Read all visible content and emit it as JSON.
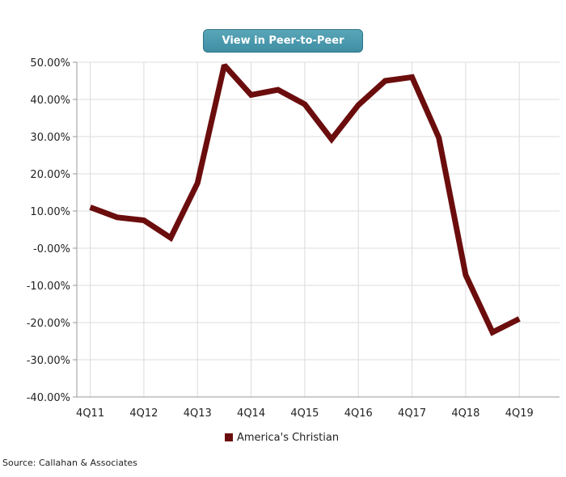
{
  "button": {
    "label": "View in Peer-to-Peer"
  },
  "chart_data": {
    "type": "line",
    "x": [
      "4Q11",
      "2Q12",
      "4Q12",
      "2Q13",
      "4Q13",
      "2Q14",
      "4Q14",
      "2Q15",
      "4Q15",
      "2Q16",
      "4Q16",
      "2Q17",
      "4Q17",
      "2Q18",
      "4Q18",
      "2Q19",
      "4Q19",
      "2Q20"
    ],
    "x_tick_labels": [
      "4Q11",
      "4Q12",
      "4Q13",
      "4Q14",
      "4Q15",
      "4Q16",
      "4Q17",
      "4Q18",
      "4Q19"
    ],
    "series": [
      {
        "name": "America's Christian",
        "color": "#6b0d0d",
        "values": [
          11.0,
          8.3,
          7.5,
          2.8,
          17.5,
          49.2,
          41.2,
          42.6,
          38.7,
          29.3,
          38.5,
          45.0,
          46.0,
          29.7,
          -7.2,
          -22.6,
          -19.0,
          null
        ]
      }
    ],
    "y_tick_labels": [
      "50.00%",
      "40.00%",
      "30.00%",
      "20.00%",
      "10.00%",
      "-0.00%",
      "-10.00%",
      "-20.00%",
      "-30.00%",
      "-40.00%"
    ],
    "ylim": [
      -40,
      50
    ],
    "grid": true,
    "legend_position": "bottom-center"
  },
  "source": "Source: Callahan & Associates"
}
